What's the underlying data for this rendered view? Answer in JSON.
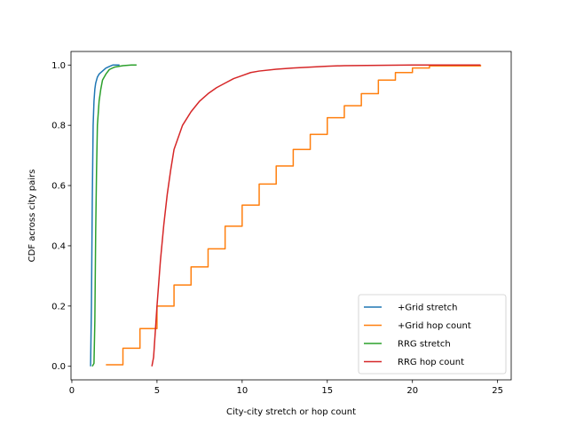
{
  "chart_data": {
    "type": "line",
    "title": "",
    "xlabel": "City-city stretch or hop count",
    "ylabel": "CDF across city pairs",
    "xlim": [
      0,
      25
    ],
    "ylim": [
      0,
      1.0
    ],
    "xticks": [
      0,
      5,
      10,
      15,
      20,
      25
    ],
    "yticks": [
      0.0,
      0.2,
      0.4,
      0.6,
      0.8,
      1.0
    ],
    "xtick_labels": [
      "0",
      "5",
      "10",
      "15",
      "20",
      "25"
    ],
    "ytick_labels": [
      "0.0",
      "0.2",
      "0.4",
      "0.6",
      "0.8",
      "1.0"
    ],
    "grid": false,
    "legend_position": "lower-right",
    "series": [
      {
        "name": "+Grid stretch",
        "color": "#1f77b4",
        "style": "line",
        "x": [
          1.1,
          1.15,
          1.2,
          1.25,
          1.3,
          1.35,
          1.4,
          1.5,
          1.6,
          1.8,
          2.0,
          2.2,
          2.4,
          2.8
        ],
        "y": [
          0.0,
          0.2,
          0.55,
          0.8,
          0.88,
          0.92,
          0.94,
          0.96,
          0.97,
          0.98,
          0.99,
          0.995,
          1.0,
          1.0
        ]
      },
      {
        "name": "+Grid hop count",
        "color": "#ff7f0e",
        "style": "step",
        "x": [
          2,
          3,
          4,
          5,
          6,
          7,
          8,
          9,
          10,
          11,
          12,
          13,
          14,
          15,
          16,
          17,
          18,
          19,
          20,
          21,
          24
        ],
        "y": [
          0.005,
          0.06,
          0.125,
          0.2,
          0.27,
          0.33,
          0.39,
          0.465,
          0.535,
          0.605,
          0.665,
          0.72,
          0.77,
          0.825,
          0.865,
          0.905,
          0.95,
          0.975,
          0.99,
          0.997,
          1.0
        ]
      },
      {
        "name": "RRG stretch",
        "color": "#2ca02c",
        "style": "line",
        "x": [
          1.2,
          1.3,
          1.35,
          1.4,
          1.45,
          1.5,
          1.6,
          1.7,
          1.8,
          2.0,
          2.2,
          2.5,
          3.0,
          3.5,
          3.8
        ],
        "y": [
          0.0,
          0.01,
          0.15,
          0.45,
          0.65,
          0.8,
          0.88,
          0.92,
          0.95,
          0.97,
          0.985,
          0.993,
          0.998,
          1.0,
          1.0
        ]
      },
      {
        "name": "RRG hop count",
        "color": "#d62728",
        "style": "line",
        "x": [
          4.7,
          4.8,
          5.0,
          5.2,
          5.4,
          5.6,
          5.8,
          6.0,
          6.5,
          7.0,
          7.5,
          8.0,
          8.5,
          9.0,
          9.5,
          10.0,
          10.5,
          11.0,
          12.0,
          13.0,
          14.0,
          15.0,
          16.0,
          18.0,
          20.0,
          24.0
        ],
        "y": [
          0.0,
          0.03,
          0.2,
          0.35,
          0.47,
          0.57,
          0.65,
          0.72,
          0.8,
          0.845,
          0.88,
          0.905,
          0.925,
          0.94,
          0.955,
          0.965,
          0.975,
          0.98,
          0.986,
          0.99,
          0.993,
          0.996,
          0.998,
          0.999,
          1.0,
          1.0
        ]
      }
    ]
  }
}
